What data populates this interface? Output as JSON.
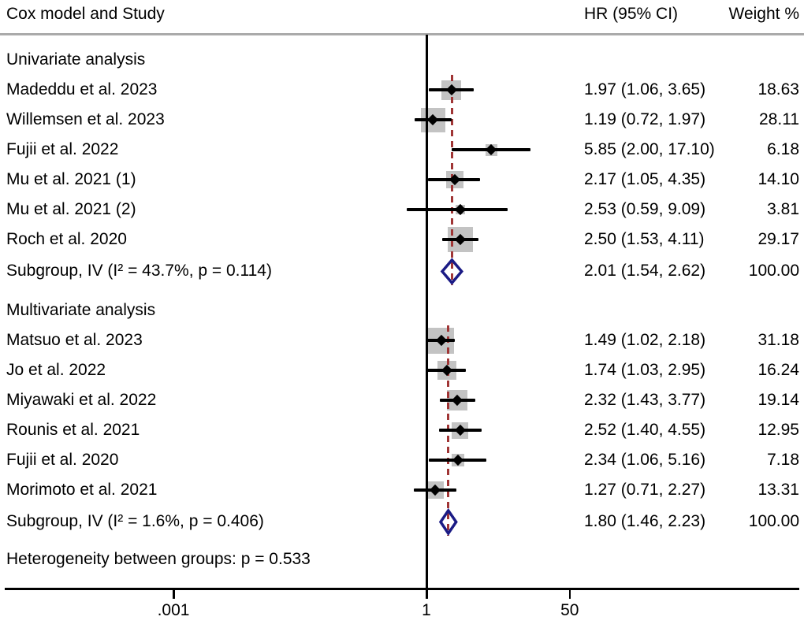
{
  "header": {
    "study_col": "Cox model and Study",
    "hr_col": "HR (95% CI)",
    "weight_col": "Weight %"
  },
  "colors": {
    "text": "#000000",
    "box_fill": "#c3c3c3",
    "pooled_diamond": "#1b1b85",
    "ref_line": "#a03535",
    "axis": "#000000",
    "header_rule": "#aaaaaa"
  },
  "chart_data": {
    "type": "forest",
    "x_scale": "log10",
    "null_value": 1,
    "axis_ticks": [
      {
        "label": ".001",
        "value": 0.001
      },
      {
        "label": "1",
        "value": 1
      },
      {
        "label": "50",
        "value": 50
      }
    ],
    "rows": [
      {
        "type": "section",
        "label": "Univariate analysis"
      },
      {
        "type": "study",
        "label": "Madeddu et al. 2023",
        "hr": 1.97,
        "lo": 1.06,
        "hi": 3.65,
        "weight": 18.63,
        "hr_text": "1.97 (1.06, 3.65)",
        "weight_text": "18.63"
      },
      {
        "type": "study",
        "label": "Willemsen et al. 2023",
        "hr": 1.19,
        "lo": 0.72,
        "hi": 1.97,
        "weight": 28.11,
        "hr_text": "1.19 (0.72, 1.97)",
        "weight_text": "28.11"
      },
      {
        "type": "study",
        "label": "Fujii et al. 2022",
        "hr": 5.85,
        "lo": 2.0,
        "hi": 17.1,
        "weight": 6.18,
        "hr_text": "5.85 (2.00, 17.10)",
        "weight_text": "6.18"
      },
      {
        "type": "study",
        "label": "Mu et al. 2021 (1)",
        "hr": 2.17,
        "lo": 1.05,
        "hi": 4.35,
        "weight": 14.1,
        "hr_text": "2.17 (1.05, 4.35)",
        "weight_text": "14.10"
      },
      {
        "type": "study",
        "label": "Mu et al. 2021 (2)",
        "hr": 2.53,
        "lo": 0.59,
        "hi": 9.09,
        "weight": 3.81,
        "hr_text": "2.53 (0.59, 9.09)",
        "weight_text": "3.81"
      },
      {
        "type": "study",
        "label": "Roch et al. 2020",
        "hr": 2.5,
        "lo": 1.53,
        "hi": 4.11,
        "weight": 29.17,
        "hr_text": "2.50 (1.53, 4.11)",
        "weight_text": "29.17"
      },
      {
        "type": "subgroup",
        "label": "Subgroup, IV (I² = 43.7%, p = 0.114)",
        "hr": 2.01,
        "lo": 1.54,
        "hi": 2.62,
        "hr_text": "2.01 (1.54, 2.62)",
        "weight_text": "100.00"
      },
      {
        "type": "section",
        "label": "Multivariate analysis"
      },
      {
        "type": "study",
        "label": "Matsuo et al. 2023",
        "hr": 1.49,
        "lo": 1.02,
        "hi": 2.18,
        "weight": 31.18,
        "hr_text": "1.49 (1.02, 2.18)",
        "weight_text": "31.18"
      },
      {
        "type": "study",
        "label": "Jo et al. 2022",
        "hr": 1.74,
        "lo": 1.03,
        "hi": 2.95,
        "weight": 16.24,
        "hr_text": "1.74 (1.03, 2.95)",
        "weight_text": "16.24"
      },
      {
        "type": "study",
        "label": "Miyawaki et al. 2022",
        "hr": 2.32,
        "lo": 1.43,
        "hi": 3.77,
        "weight": 19.14,
        "hr_text": "2.32 (1.43, 3.77)",
        "weight_text": "19.14"
      },
      {
        "type": "study",
        "label": "Rounis et al. 2021",
        "hr": 2.52,
        "lo": 1.4,
        "hi": 4.55,
        "weight": 12.95,
        "hr_text": "2.52 (1.40, 4.55)",
        "weight_text": "12.95"
      },
      {
        "type": "study",
        "label": "Fujii et al. 2020",
        "hr": 2.34,
        "lo": 1.06,
        "hi": 5.16,
        "weight": 7.18,
        "hr_text": "2.34 (1.06, 5.16)",
        "weight_text": "7.18"
      },
      {
        "type": "study",
        "label": "Morimoto et al. 2021",
        "hr": 1.27,
        "lo": 0.71,
        "hi": 2.27,
        "weight": 13.31,
        "hr_text": "1.27 (0.71, 2.27)",
        "weight_text": "13.31"
      },
      {
        "type": "subgroup",
        "label": "Subgroup, IV (I² = 1.6%, p = 0.406)",
        "hr": 1.8,
        "lo": 1.46,
        "hi": 2.23,
        "hr_text": "1.80 (1.46, 2.23)",
        "weight_text": "100.00"
      },
      {
        "type": "note",
        "label": "Heterogeneity between groups: p = 0.533"
      }
    ],
    "ref_lines": [
      {
        "value": 2.01,
        "from_row": 1,
        "to_row": 7
      },
      {
        "value": 1.8,
        "from_row": 9,
        "to_row": 15
      }
    ]
  }
}
